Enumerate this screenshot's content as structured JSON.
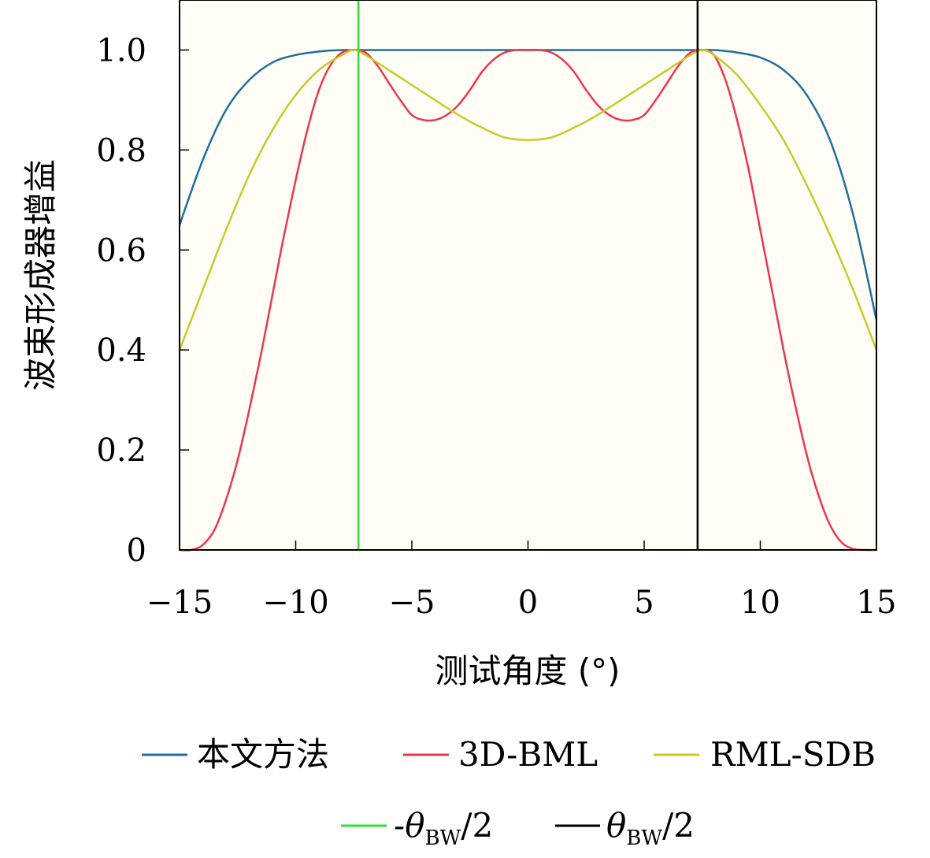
{
  "chart_data": {
    "type": "line",
    "xlabel": "测试角度 (°)",
    "ylabel": "波束形成器增益",
    "xlim": [
      -15,
      15
    ],
    "ylim": [
      0,
      1.1
    ],
    "xticks": [
      -15,
      -10,
      -5,
      0,
      5,
      10,
      15
    ],
    "xtick_labels": [
      "−15",
      "−10",
      "−5",
      "0",
      "5",
      "10",
      "15"
    ],
    "yticks": [
      0,
      0.2,
      0.4,
      0.6,
      0.8,
      1.0
    ],
    "ytick_labels": [
      "0",
      "0.2",
      "0.4",
      "0.6",
      "0.8",
      "1.0"
    ],
    "grid": false,
    "legend_position": "bottom",
    "series": [
      {
        "name": "本文方法",
        "color": "#1f6f9f",
        "x": [
          -15,
          -14,
          -13,
          -12,
          -11,
          -10,
          -9,
          -8.5,
          -8,
          -7.5,
          -7,
          -5,
          0,
          5,
          7,
          7.5,
          8,
          8.5,
          9,
          10,
          11,
          12,
          13,
          14,
          15
        ],
        "y": [
          0.65,
          0.78,
          0.88,
          0.94,
          0.975,
          0.99,
          0.997,
          0.999,
          1.0,
          1.0,
          1.0,
          1.0,
          1.0,
          1.0,
          1.0,
          1.0,
          1.0,
          0.998,
          0.995,
          0.985,
          0.96,
          0.91,
          0.82,
          0.67,
          0.46
        ]
      },
      {
        "name": "3D-BML",
        "color": "#e8384f",
        "x": [
          -15,
          -14.5,
          -14,
          -13.5,
          -13,
          -12.5,
          -12,
          -11.5,
          -11,
          -10.5,
          -10,
          -9.5,
          -9,
          -8.5,
          -8,
          -7.5,
          -7,
          -6.5,
          -6,
          -5.5,
          -5,
          -4.5,
          -4,
          -3.5,
          -3,
          -2.5,
          -2,
          -1.5,
          -1,
          -0.5,
          0,
          0.5,
          1,
          1.5,
          2,
          2.5,
          3,
          3.5,
          4,
          4.5,
          5,
          5.5,
          6,
          6.5,
          7,
          7.5,
          8,
          8.5,
          9,
          9.5,
          10,
          10.5,
          11,
          11.5,
          12,
          12.5,
          13,
          13.5,
          14,
          14.5,
          15
        ],
        "y": [
          0.0,
          0.0,
          0.01,
          0.04,
          0.1,
          0.18,
          0.28,
          0.39,
          0.51,
          0.63,
          0.74,
          0.84,
          0.92,
          0.97,
          0.995,
          1.0,
          0.995,
          0.97,
          0.935,
          0.9,
          0.87,
          0.86,
          0.86,
          0.87,
          0.89,
          0.92,
          0.955,
          0.98,
          0.995,
          1.0,
          1.0,
          1.0,
          0.995,
          0.98,
          0.955,
          0.92,
          0.89,
          0.87,
          0.86,
          0.86,
          0.87,
          0.9,
          0.935,
          0.97,
          0.995,
          1.0,
          0.99,
          0.94,
          0.86,
          0.76,
          0.64,
          0.52,
          0.4,
          0.29,
          0.19,
          0.11,
          0.05,
          0.015,
          0.002,
          0.0,
          0.0
        ]
      },
      {
        "name": "RML-SDB",
        "color": "#c9c92a",
        "x": [
          -15,
          -14,
          -13,
          -12,
          -11,
          -10,
          -9,
          -8,
          -7.5,
          -7,
          -6,
          -5,
          -4,
          -3,
          -2,
          -1,
          0,
          1,
          2,
          3,
          4,
          5,
          6,
          7,
          7.5,
          8,
          9,
          10,
          11,
          12,
          13,
          14,
          15
        ],
        "y": [
          0.4,
          0.52,
          0.64,
          0.75,
          0.84,
          0.91,
          0.96,
          0.99,
          1.0,
          0.99,
          0.96,
          0.93,
          0.9,
          0.87,
          0.845,
          0.825,
          0.82,
          0.825,
          0.845,
          0.87,
          0.9,
          0.93,
          0.96,
          0.99,
          1.0,
          0.99,
          0.95,
          0.89,
          0.82,
          0.73,
          0.63,
          0.52,
          0.4
        ]
      }
    ],
    "vlines": [
      {
        "name": "-θBW/2",
        "x": -7.3,
        "color": "#33dd33"
      },
      {
        "name": "θBW/2",
        "x": 7.3,
        "color": "#000000"
      }
    ],
    "legend": [
      {
        "series": "本文方法",
        "label": "本文方法",
        "color": "#1f6f9f"
      },
      {
        "series": "3D-BML",
        "label": "3D-BML",
        "color": "#e8384f"
      },
      {
        "series": "RML-SDB",
        "label": "RML-SDB",
        "color": "#c9c92a"
      },
      {
        "series": "-θBW/2",
        "label_main": "-θ",
        "label_sub": "BW",
        "label_tail": "/2",
        "color": "#33dd33"
      },
      {
        "series": "θBW/2",
        "label_main": "θ",
        "label_sub": "BW",
        "label_tail": "/2",
        "color": "#000000"
      }
    ]
  }
}
